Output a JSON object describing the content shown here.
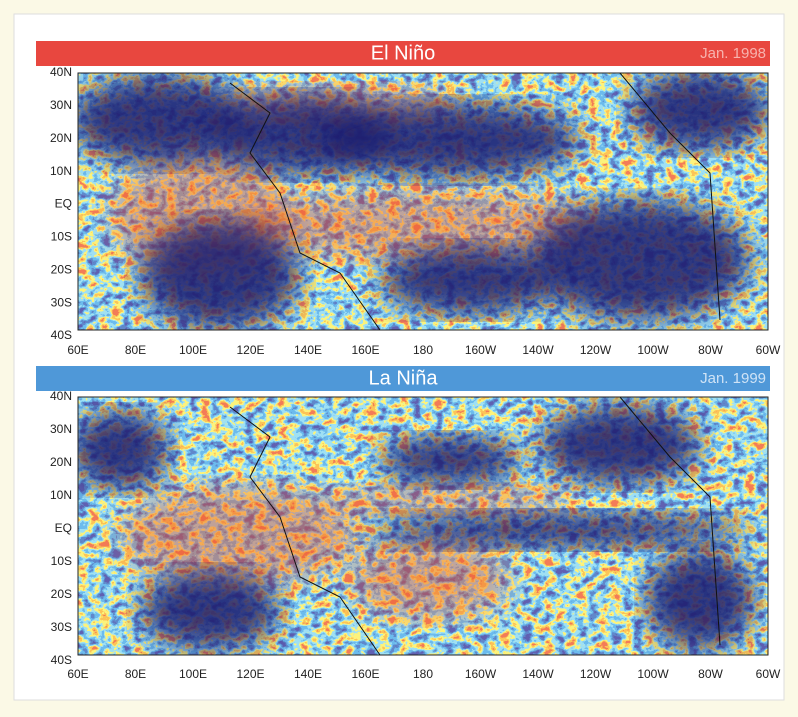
{
  "panels": [
    {
      "title": "El Niño",
      "date": "Jan. 1998"
    },
    {
      "title": "La Niña",
      "date": "Jan. 1999"
    }
  ],
  "lat_labels": [
    "40N",
    "30N",
    "20N",
    "10N",
    "EQ",
    "10S",
    "20S",
    "30S",
    "40S"
  ],
  "lon_labels": [
    "60E",
    "80E",
    "100E",
    "120E",
    "140E",
    "160E",
    "180",
    "160W",
    "140W",
    "120W",
    "100W",
    "80W",
    "60W"
  ]
}
